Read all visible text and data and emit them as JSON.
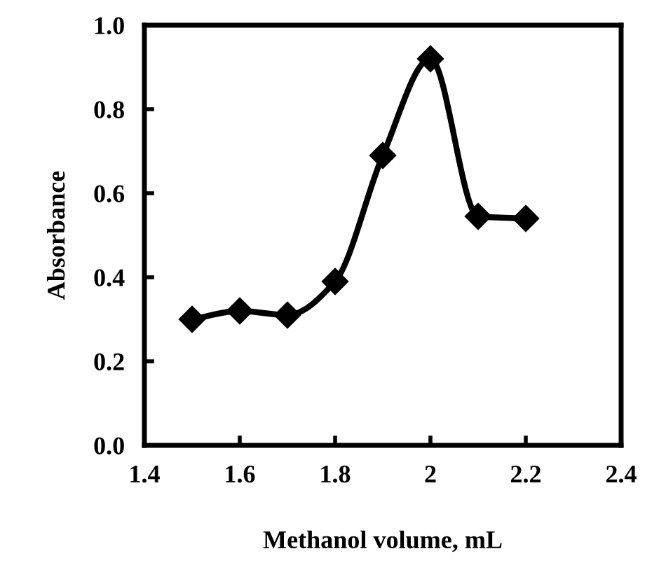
{
  "chart_data": {
    "type": "line",
    "xlabel": "Methanol volume, mL",
    "ylabel": "Absorbance",
    "x": [
      1.5,
      1.6,
      1.7,
      1.8,
      1.9,
      2.0,
      2.1,
      2.2
    ],
    "series": [
      {
        "color": "#000000",
        "values": [
          0.3,
          0.32,
          0.31,
          0.39,
          0.69,
          0.92,
          0.545,
          0.54
        ]
      }
    ],
    "xlim": [
      1.4,
      2.4
    ],
    "xticks": [
      1.4,
      1.6,
      1.8,
      2,
      2.2,
      2.4
    ],
    "ylim": [
      0,
      1
    ],
    "yticks": [
      {
        "value": 0,
        "label": "0.0"
      },
      {
        "value": 0.2,
        "label": "0.2"
      },
      {
        "value": 0.4,
        "label": "0.4"
      },
      {
        "value": 0.6,
        "label": "0.6"
      },
      {
        "value": 0.8,
        "label": "0.8"
      },
      {
        "value": 1,
        "label": "1.0"
      }
    ],
    "marker": "diamond",
    "line_style": "solid",
    "grid": false
  }
}
